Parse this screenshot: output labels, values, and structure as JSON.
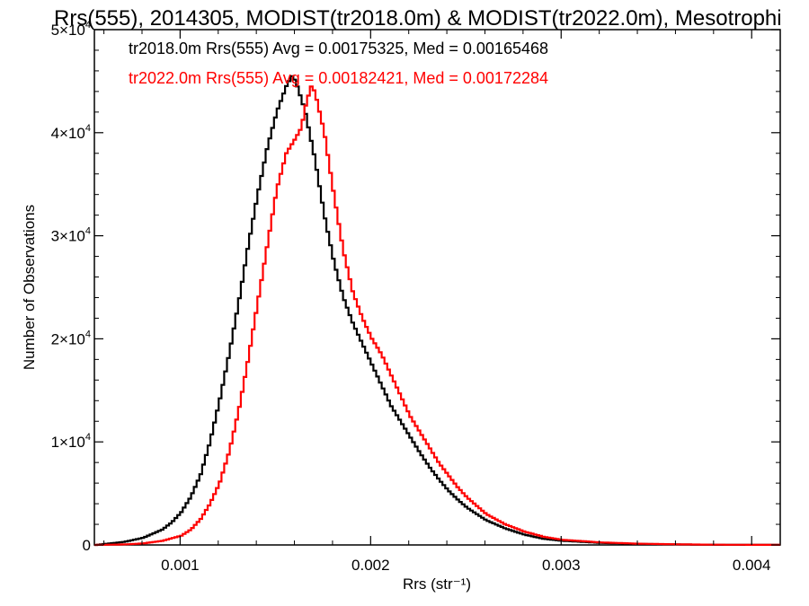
{
  "chart_data": {
    "type": "line",
    "title": "Rrs(555), 2014305, MODIST(tr2018.0m) & MODIST(tr2022.0m), Mesotrophi",
    "xlabel": "Rrs (str⁻¹)",
    "ylabel": "Number of Observations",
    "xlim": [
      0.00055,
      0.00415
    ],
    "ylim": [
      0,
      50000
    ],
    "x_ticks": [
      0.001,
      0.002,
      0.003,
      0.004
    ],
    "x_tick_labels": [
      "0.001",
      "0.002",
      "0.003",
      "0.004"
    ],
    "y_ticks": [
      0,
      10000,
      20000,
      30000,
      40000,
      50000
    ],
    "y_tick_labels": [
      {
        "base": "0",
        "exp": ""
      },
      {
        "base": "1×10",
        "exp": "4"
      },
      {
        "base": "2×10",
        "exp": "4"
      },
      {
        "base": "3×10",
        "exp": "4"
      },
      {
        "base": "4×10",
        "exp": "4"
      },
      {
        "base": "5×10",
        "exp": "4"
      }
    ],
    "grid": false,
    "series": [
      {
        "label": "tr2018.0m Rrs(555) Avg = 0.00175325, Med = 0.00165468",
        "color": "#000000",
        "points": [
          [
            0.00055,
            0
          ],
          [
            0.0006,
            100
          ],
          [
            0.0007,
            300
          ],
          [
            0.0008,
            700
          ],
          [
            0.0009,
            1500
          ],
          [
            0.00095,
            2200
          ],
          [
            0.001,
            3200
          ],
          [
            0.00105,
            4700
          ],
          [
            0.0011,
            6800
          ],
          [
            0.00115,
            10000
          ],
          [
            0.0012,
            14000
          ],
          [
            0.00125,
            18500
          ],
          [
            0.0013,
            23500
          ],
          [
            0.00135,
            29000
          ],
          [
            0.0014,
            34000
          ],
          [
            0.00145,
            38500
          ],
          [
            0.0015,
            42000
          ],
          [
            0.00155,
            44500
          ],
          [
            0.00158,
            45500
          ],
          [
            0.0016,
            45000
          ],
          [
            0.00165,
            42000
          ],
          [
            0.0017,
            37500
          ],
          [
            0.00175,
            32000
          ],
          [
            0.0018,
            27500
          ],
          [
            0.00185,
            24000
          ],
          [
            0.0019,
            21500
          ],
          [
            0.00195,
            19500
          ],
          [
            0.002,
            17500
          ],
          [
            0.00205,
            15500
          ],
          [
            0.0021,
            13500
          ],
          [
            0.00215,
            12000
          ],
          [
            0.0022,
            10500
          ],
          [
            0.00225,
            9000
          ],
          [
            0.0023,
            7600
          ],
          [
            0.00235,
            6400
          ],
          [
            0.0024,
            5300
          ],
          [
            0.00245,
            4400
          ],
          [
            0.0025,
            3600
          ],
          [
            0.0026,
            2400
          ],
          [
            0.0027,
            1600
          ],
          [
            0.0028,
            1000
          ],
          [
            0.0029,
            600
          ],
          [
            0.003,
            400
          ],
          [
            0.0032,
            200
          ],
          [
            0.0034,
            100
          ],
          [
            0.0036,
            50
          ],
          [
            0.0038,
            20
          ],
          [
            0.004,
            10
          ],
          [
            0.00415,
            5
          ]
        ]
      },
      {
        "label": "tr2022.0m Rrs(555) Avg = 0.00182421, Med = 0.00172284",
        "color": "#ff0000",
        "points": [
          [
            0.00055,
            0
          ],
          [
            0.0007,
            50
          ],
          [
            0.0008,
            150
          ],
          [
            0.0009,
            400
          ],
          [
            0.001,
            900
          ],
          [
            0.00105,
            1500
          ],
          [
            0.0011,
            2500
          ],
          [
            0.00115,
            4000
          ],
          [
            0.0012,
            6000
          ],
          [
            0.00125,
            9000
          ],
          [
            0.0013,
            13000
          ],
          [
            0.00135,
            18000
          ],
          [
            0.0014,
            23500
          ],
          [
            0.00145,
            29000
          ],
          [
            0.0015,
            34500
          ],
          [
            0.00155,
            38000
          ],
          [
            0.0016,
            39500
          ],
          [
            0.00163,
            40500
          ],
          [
            0.00165,
            42500
          ],
          [
            0.00168,
            44500
          ],
          [
            0.0017,
            44000
          ],
          [
            0.00175,
            40000
          ],
          [
            0.0018,
            34000
          ],
          [
            0.00185,
            28500
          ],
          [
            0.0019,
            24500
          ],
          [
            0.00195,
            22000
          ],
          [
            0.002,
            20000
          ],
          [
            0.00205,
            18500
          ],
          [
            0.0021,
            16500
          ],
          [
            0.00215,
            14500
          ],
          [
            0.0022,
            12500
          ],
          [
            0.00225,
            11000
          ],
          [
            0.0023,
            9500
          ],
          [
            0.00235,
            8000
          ],
          [
            0.0024,
            6800
          ],
          [
            0.00245,
            5600
          ],
          [
            0.0025,
            4600
          ],
          [
            0.0026,
            3000
          ],
          [
            0.0027,
            2000
          ],
          [
            0.0028,
            1300
          ],
          [
            0.0029,
            800
          ],
          [
            0.003,
            500
          ],
          [
            0.0032,
            250
          ],
          [
            0.0034,
            120
          ],
          [
            0.0036,
            60
          ],
          [
            0.0038,
            25
          ],
          [
            0.004,
            10
          ],
          [
            0.00415,
            5
          ]
        ]
      }
    ]
  }
}
